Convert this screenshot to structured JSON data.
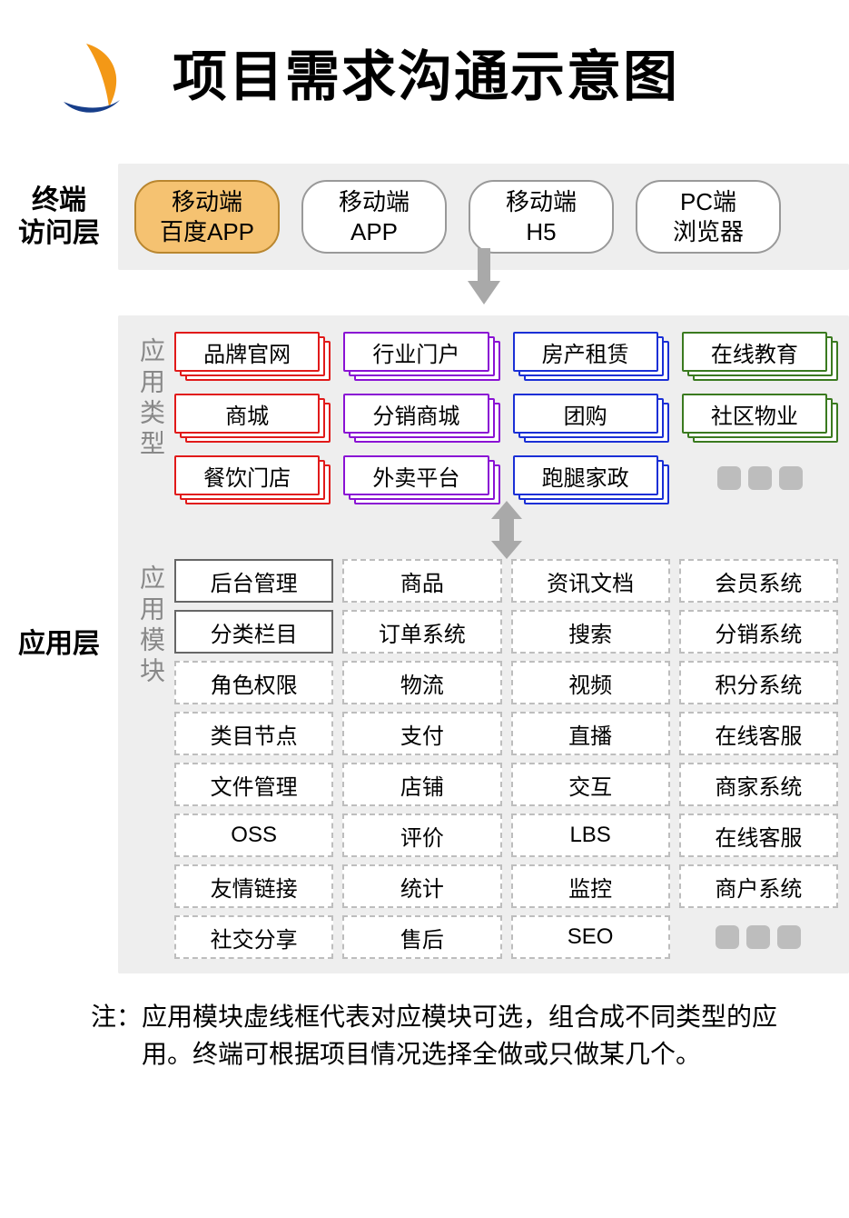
{
  "colors": {
    "bg_panel": "#eeeeee",
    "arrow": "#a9a9a9",
    "dot": "#bdbdbd",
    "pill_border": "#999999",
    "pill_highlight_bg": "#f5c271",
    "pill_highlight_border": "#b9862f",
    "module_border_dashed": "#bdbdbd",
    "module_border_solid": "#666666",
    "sublabel_text": "#888888"
  },
  "header": {
    "title": "项目需求沟通示意图"
  },
  "terminal_layer": {
    "label": "终端\n访问层",
    "pills": [
      {
        "line1": "移动端",
        "line2": "百度APP",
        "highlight": true
      },
      {
        "line1": "移动端",
        "line2": "APP",
        "highlight": false
      },
      {
        "line1": "移动端",
        "line2": "H5",
        "highlight": false
      },
      {
        "line1": "PC端",
        "line2": "浏览器",
        "highlight": false
      }
    ]
  },
  "app_layer": {
    "label": "应用层",
    "types_label": "应用类型",
    "modules_label": "应用模块",
    "type_colors": {
      "red": "#e11a1a",
      "purple": "#8a12d4",
      "blue": "#1a2fd6",
      "green": "#3a7a1f"
    },
    "types": [
      {
        "text": "品牌官网",
        "color": "red"
      },
      {
        "text": "行业门户",
        "color": "purple"
      },
      {
        "text": "房产租赁",
        "color": "blue"
      },
      {
        "text": "在线教育",
        "color": "green"
      },
      {
        "text": "商城",
        "color": "red"
      },
      {
        "text": "分销商城",
        "color": "purple"
      },
      {
        "text": "团购",
        "color": "blue"
      },
      {
        "text": "社区物业",
        "color": "green"
      },
      {
        "text": "餐饮门店",
        "color": "red"
      },
      {
        "text": "外卖平台",
        "color": "purple"
      },
      {
        "text": "跑腿家政",
        "color": "blue"
      },
      {
        "dots": true
      }
    ],
    "modules": [
      {
        "text": "后台管理",
        "solid": true
      },
      {
        "text": "商品"
      },
      {
        "text": "资讯文档"
      },
      {
        "text": "会员系统"
      },
      {
        "text": "分类栏目",
        "solid": true
      },
      {
        "text": "订单系统"
      },
      {
        "text": "搜索"
      },
      {
        "text": "分销系统"
      },
      {
        "text": "角色权限"
      },
      {
        "text": "物流"
      },
      {
        "text": "视频"
      },
      {
        "text": "积分系统"
      },
      {
        "text": "类目节点"
      },
      {
        "text": "支付"
      },
      {
        "text": "直播"
      },
      {
        "text": "在线客服"
      },
      {
        "text": "文件管理"
      },
      {
        "text": "店铺"
      },
      {
        "text": "交互"
      },
      {
        "text": "商家系统"
      },
      {
        "text": "OSS"
      },
      {
        "text": "评价"
      },
      {
        "text": "LBS"
      },
      {
        "text": "在线客服"
      },
      {
        "text": "友情链接"
      },
      {
        "text": "统计"
      },
      {
        "text": "监控"
      },
      {
        "text": "商户系统"
      },
      {
        "text": "社交分享"
      },
      {
        "text": "售后"
      },
      {
        "text": "SEO"
      },
      {
        "dots": true
      }
    ]
  },
  "note": {
    "prefix": "注：",
    "text": "应用模块虚线框代表对应模块可选，组合成不同类型的应用。终端可根据项目情况选择全做或只做某几个。"
  }
}
